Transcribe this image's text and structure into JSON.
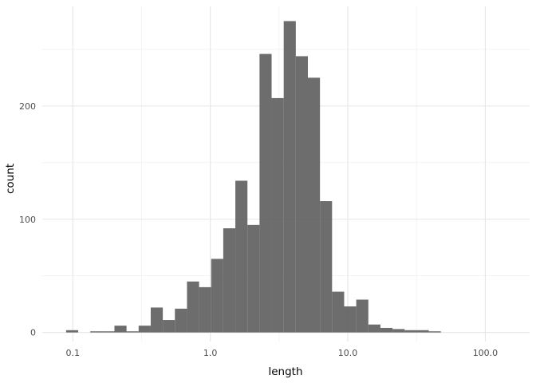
{
  "chart_data": {
    "type": "bar",
    "subtype": "histogram",
    "x_scale": "log10",
    "xlabel": "length",
    "ylabel": "count",
    "xlim": [
      0.06,
      210
    ],
    "ylim": [
      -8,
      288
    ],
    "x_ticks": [
      {
        "value": 0.1,
        "label": "0.1"
      },
      {
        "value": 1,
        "label": "1.0"
      },
      {
        "value": 10,
        "label": "10.0"
      },
      {
        "value": 100,
        "label": "100.0"
      }
    ],
    "y_ticks": [
      {
        "value": 0,
        "label": "0"
      },
      {
        "value": 100,
        "label": "100"
      },
      {
        "value": 200,
        "label": "200"
      }
    ],
    "grid": true,
    "bar_color": "#595959",
    "bar_opacity": 0.88,
    "bins": [
      {
        "from": 0.0894,
        "to": 0.1095,
        "count": 2
      },
      {
        "from": 0.1095,
        "to": 0.134,
        "count": 0
      },
      {
        "from": 0.134,
        "to": 0.1641,
        "count": 1
      },
      {
        "from": 0.1641,
        "to": 0.2009,
        "count": 1
      },
      {
        "from": 0.2009,
        "to": 0.246,
        "count": 6
      },
      {
        "from": 0.246,
        "to": 0.3012,
        "count": 1
      },
      {
        "from": 0.3012,
        "to": 0.3688,
        "count": 6
      },
      {
        "from": 0.3688,
        "to": 0.4515,
        "count": 22
      },
      {
        "from": 0.4515,
        "to": 0.5528,
        "count": 11
      },
      {
        "from": 0.5528,
        "to": 0.6769,
        "count": 21
      },
      {
        "from": 0.6769,
        "to": 0.8288,
        "count": 45
      },
      {
        "from": 0.8288,
        "to": 1.0148,
        "count": 40
      },
      {
        "from": 1.0148,
        "to": 1.2425,
        "count": 65
      },
      {
        "from": 1.2425,
        "to": 1.5213,
        "count": 92
      },
      {
        "from": 1.5213,
        "to": 1.8627,
        "count": 134
      },
      {
        "from": 1.8627,
        "to": 2.2807,
        "count": 95
      },
      {
        "from": 2.2807,
        "to": 2.7925,
        "count": 246
      },
      {
        "from": 2.7925,
        "to": 3.4191,
        "count": 207
      },
      {
        "from": 3.4191,
        "to": 4.1864,
        "count": 275
      },
      {
        "from": 4.1864,
        "to": 5.1258,
        "count": 244
      },
      {
        "from": 5.1258,
        "to": 6.2761,
        "count": 225
      },
      {
        "from": 6.2761,
        "to": 7.6845,
        "count": 116
      },
      {
        "from": 7.6845,
        "to": 9.4089,
        "count": 36
      },
      {
        "from": 9.4089,
        "to": 11.5203,
        "count": 23
      },
      {
        "from": 11.5203,
        "to": 14.1055,
        "count": 29
      },
      {
        "from": 14.1055,
        "to": 17.2709,
        "count": 7
      },
      {
        "from": 17.2709,
        "to": 21.1466,
        "count": 4
      },
      {
        "from": 21.1466,
        "to": 25.892,
        "count": 3
      },
      {
        "from": 25.892,
        "to": 31.7024,
        "count": 2
      },
      {
        "from": 31.7024,
        "to": 38.8166,
        "count": 2
      },
      {
        "from": 38.8166,
        "to": 47.5273,
        "count": 1
      }
    ]
  }
}
